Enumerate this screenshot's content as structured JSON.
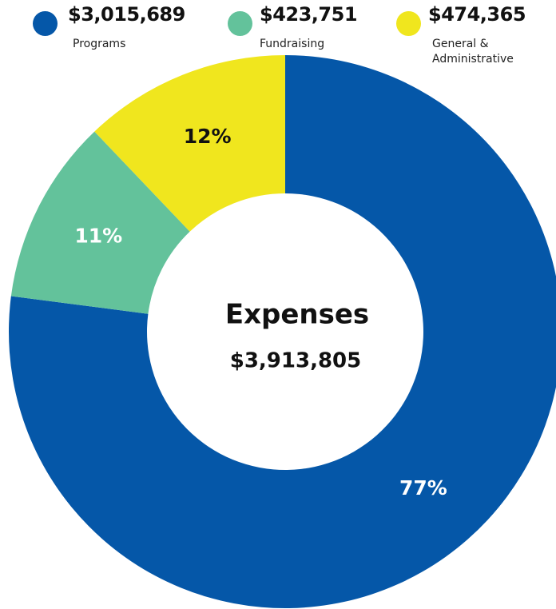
{
  "chart_data": {
    "type": "pie",
    "variant": "donut",
    "center_title": "Expenses",
    "center_total": "$3,913,805",
    "series": [
      {
        "name": "Programs",
        "amount": "$3,015,689",
        "value": 3015689,
        "percent_label": "77%",
        "color": "#0557a8",
        "label_color": "#ffffff"
      },
      {
        "name": "Fundraising",
        "amount": "$423,751",
        "value": 423751,
        "percent_label": "11%",
        "color": "#63c29b",
        "label_color": "#ffffff"
      },
      {
        "name": "General &\nAdministrative",
        "amount": "$474,365",
        "value": 474365,
        "percent_label": "12%",
        "color": "#f0e61e",
        "label_color": "#111111"
      }
    ],
    "legend_position": "top"
  }
}
